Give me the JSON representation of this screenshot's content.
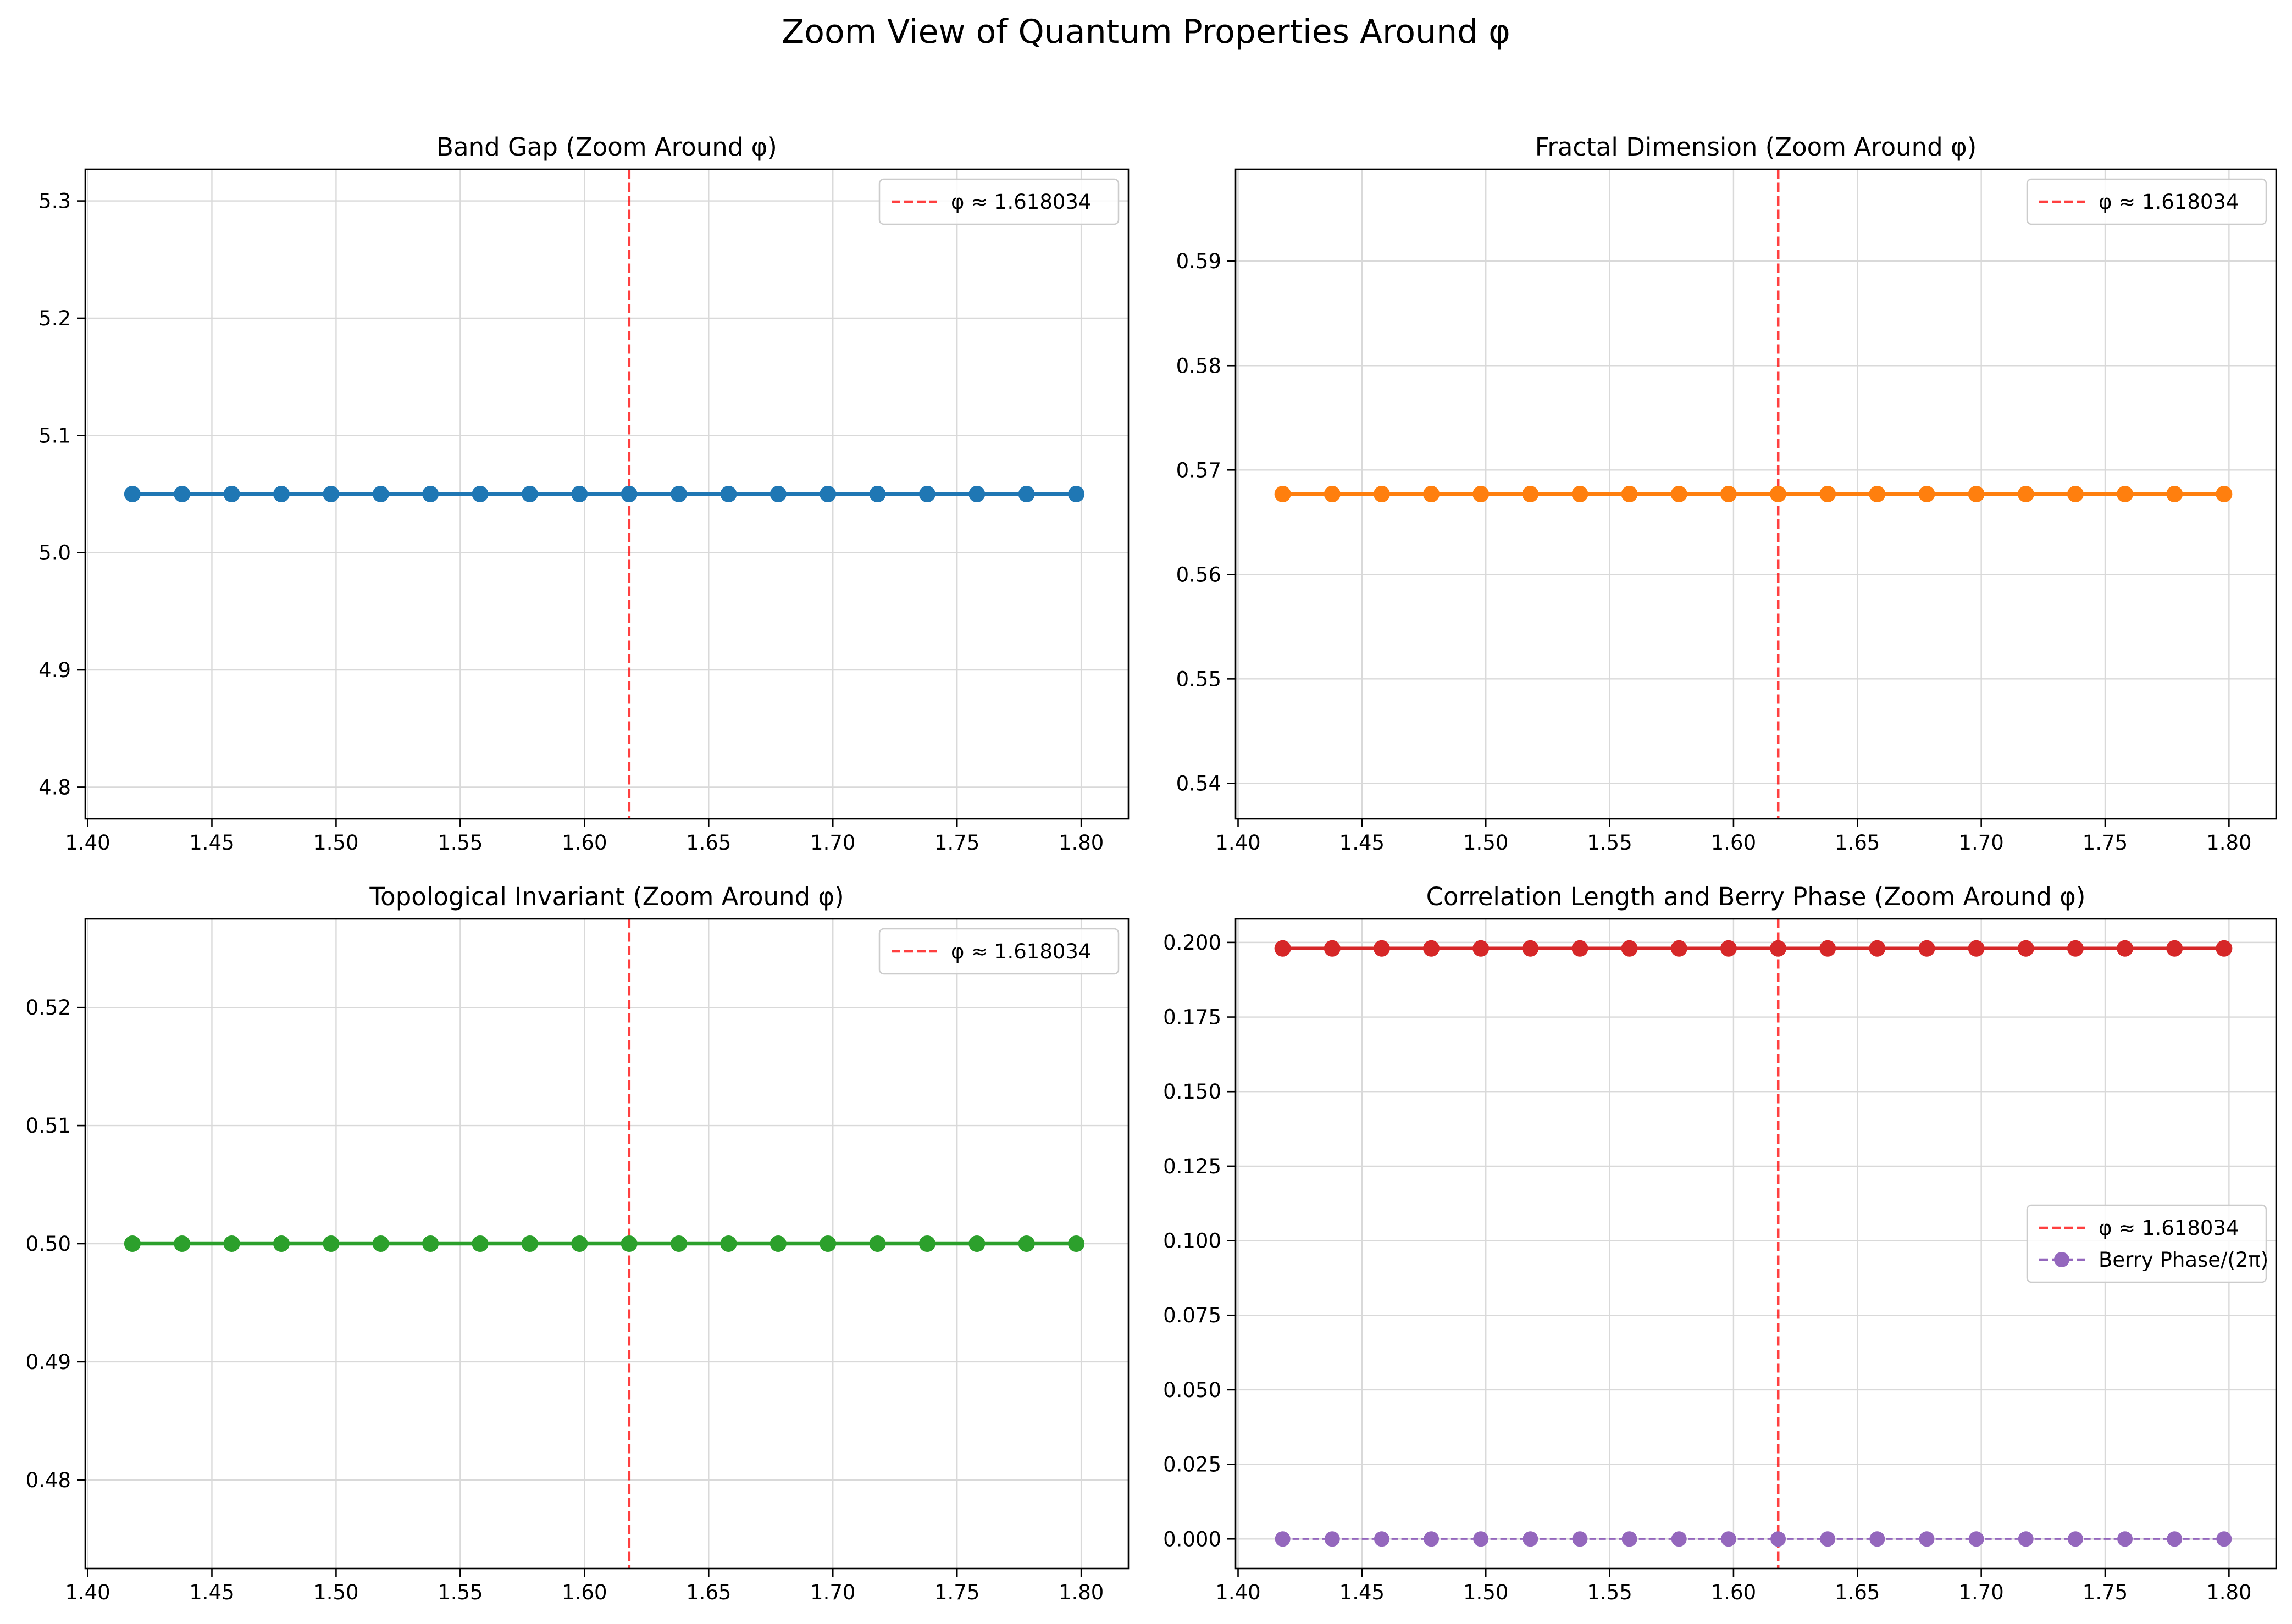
{
  "figure": {
    "title": "Zoom View of Quantum Properties Around φ"
  },
  "colors": {
    "phi_line": "#ff0000",
    "grid": "#d9d9d9",
    "axes": "#000000"
  },
  "chart_data": [
    {
      "type": "line",
      "title": "Band Gap (Zoom Around φ)",
      "xlabel": "",
      "ylabel": "",
      "xlim": [
        1.399,
        1.819
      ],
      "ylim": [
        4.773,
        5.327
      ],
      "xticks": [
        1.4,
        1.45,
        1.5,
        1.55,
        1.6,
        1.65,
        1.7,
        1.75,
        1.8
      ],
      "xtick_labels": [
        "1.40",
        "1.45",
        "1.50",
        "1.55",
        "1.60",
        "1.65",
        "1.70",
        "1.75",
        "1.80"
      ],
      "yticks": [
        4.8,
        4.9,
        5.0,
        5.1,
        5.2,
        5.3
      ],
      "ytick_labels": [
        "4.8",
        "4.9",
        "5.0",
        "5.1",
        "5.2",
        "5.3"
      ],
      "grid": true,
      "legend_position": "top-right",
      "vline": {
        "x": 1.618034,
        "label": "φ ≈ 1.618034",
        "color": "#ff0000",
        "style": "dashed"
      },
      "x": [
        1.418,
        1.438,
        1.458,
        1.478,
        1.498,
        1.518,
        1.538,
        1.558,
        1.578,
        1.598,
        1.618,
        1.638,
        1.658,
        1.678,
        1.698,
        1.718,
        1.738,
        1.758,
        1.778,
        1.798
      ],
      "series": [
        {
          "values": [
            5.05,
            5.05,
            5.05,
            5.05,
            5.05,
            5.05,
            5.05,
            5.05,
            5.05,
            5.05,
            5.05,
            5.05,
            5.05,
            5.05,
            5.05,
            5.05,
            5.05,
            5.05,
            5.05,
            5.05
          ],
          "color": "#1f77b4",
          "style": "solid",
          "marker": "circle"
        }
      ]
    },
    {
      "type": "line",
      "title": "Fractal Dimension (Zoom Around φ)",
      "xlabel": "",
      "ylabel": "",
      "xlim": [
        1.399,
        1.819
      ],
      "ylim": [
        0.5366,
        0.5988
      ],
      "xticks": [
        1.4,
        1.45,
        1.5,
        1.55,
        1.6,
        1.65,
        1.7,
        1.75,
        1.8
      ],
      "xtick_labels": [
        "1.40",
        "1.45",
        "1.50",
        "1.55",
        "1.60",
        "1.65",
        "1.70",
        "1.75",
        "1.80"
      ],
      "yticks": [
        0.54,
        0.55,
        0.56,
        0.57,
        0.58,
        0.59
      ],
      "ytick_labels": [
        "0.54",
        "0.55",
        "0.56",
        "0.57",
        "0.58",
        "0.59"
      ],
      "grid": true,
      "legend_position": "top-right",
      "vline": {
        "x": 1.618034,
        "label": "φ ≈ 1.618034",
        "color": "#ff0000",
        "style": "dashed"
      },
      "x": [
        1.418,
        1.438,
        1.458,
        1.478,
        1.498,
        1.518,
        1.538,
        1.558,
        1.578,
        1.598,
        1.618,
        1.638,
        1.658,
        1.678,
        1.698,
        1.718,
        1.738,
        1.758,
        1.778,
        1.798
      ],
      "series": [
        {
          "values": [
            0.5677,
            0.5677,
            0.5677,
            0.5677,
            0.5677,
            0.5677,
            0.5677,
            0.5677,
            0.5677,
            0.5677,
            0.5677,
            0.5677,
            0.5677,
            0.5677,
            0.5677,
            0.5677,
            0.5677,
            0.5677,
            0.5677,
            0.5677
          ],
          "color": "#ff7f0e",
          "style": "solid",
          "marker": "circle"
        }
      ]
    },
    {
      "type": "line",
      "title": "Topological Invariant (Zoom Around φ)",
      "xlabel": "",
      "ylabel": "",
      "xlim": [
        1.399,
        1.819
      ],
      "ylim": [
        0.4725,
        0.5275
      ],
      "xticks": [
        1.4,
        1.45,
        1.5,
        1.55,
        1.6,
        1.65,
        1.7,
        1.75,
        1.8
      ],
      "xtick_labels": [
        "1.40",
        "1.45",
        "1.50",
        "1.55",
        "1.60",
        "1.65",
        "1.70",
        "1.75",
        "1.80"
      ],
      "yticks": [
        0.48,
        0.49,
        0.5,
        0.51,
        0.52
      ],
      "ytick_labels": [
        "0.48",
        "0.49",
        "0.50",
        "0.51",
        "0.52"
      ],
      "grid": true,
      "legend_position": "top-right",
      "vline": {
        "x": 1.618034,
        "label": "φ ≈ 1.618034",
        "color": "#ff0000",
        "style": "dashed"
      },
      "x": [
        1.418,
        1.438,
        1.458,
        1.478,
        1.498,
        1.518,
        1.538,
        1.558,
        1.578,
        1.598,
        1.618,
        1.638,
        1.658,
        1.678,
        1.698,
        1.718,
        1.738,
        1.758,
        1.778,
        1.798
      ],
      "series": [
        {
          "values": [
            0.5,
            0.5,
            0.5,
            0.5,
            0.5,
            0.5,
            0.5,
            0.5,
            0.5,
            0.5,
            0.5,
            0.5,
            0.5,
            0.5,
            0.5,
            0.5,
            0.5,
            0.5,
            0.5,
            0.5
          ],
          "color": "#2ca02c",
          "style": "solid",
          "marker": "circle"
        }
      ]
    },
    {
      "type": "line",
      "title": "Correlation Length and Berry Phase (Zoom Around φ)",
      "xlabel": "",
      "ylabel": "",
      "xlim": [
        1.399,
        1.819
      ],
      "ylim": [
        -0.0099,
        0.2079
      ],
      "xticks": [
        1.4,
        1.45,
        1.5,
        1.55,
        1.6,
        1.65,
        1.7,
        1.75,
        1.8
      ],
      "xtick_labels": [
        "1.40",
        "1.45",
        "1.50",
        "1.55",
        "1.60",
        "1.65",
        "1.70",
        "1.75",
        "1.80"
      ],
      "yticks": [
        0.0,
        0.025,
        0.05,
        0.075,
        0.1,
        0.125,
        0.15,
        0.175,
        0.2
      ],
      "ytick_labels": [
        "0.000",
        "0.025",
        "0.050",
        "0.075",
        "0.100",
        "0.125",
        "0.150",
        "0.175",
        "0.200"
      ],
      "grid": true,
      "legend_position": "center-right",
      "vline": {
        "x": 1.618034,
        "label": "φ ≈ 1.618034",
        "color": "#ff0000",
        "style": "dashed"
      },
      "x": [
        1.418,
        1.438,
        1.458,
        1.478,
        1.498,
        1.518,
        1.538,
        1.558,
        1.578,
        1.598,
        1.618,
        1.638,
        1.658,
        1.678,
        1.698,
        1.718,
        1.738,
        1.758,
        1.778,
        1.798
      ],
      "series": [
        {
          "values": [
            0.198,
            0.198,
            0.198,
            0.198,
            0.198,
            0.198,
            0.198,
            0.198,
            0.198,
            0.198,
            0.198,
            0.198,
            0.198,
            0.198,
            0.198,
            0.198,
            0.198,
            0.198,
            0.198,
            0.198
          ],
          "color": "#d62728",
          "style": "solid",
          "marker": "circle"
        },
        {
          "name": "Berry Phase/(2π)",
          "values": [
            0,
            0,
            0,
            0,
            0,
            0,
            0,
            0,
            0,
            0,
            0,
            0,
            0,
            0,
            0,
            0,
            0,
            0,
            0,
            0
          ],
          "color": "#9467bd",
          "style": "dashed",
          "marker": "circle"
        }
      ]
    }
  ]
}
